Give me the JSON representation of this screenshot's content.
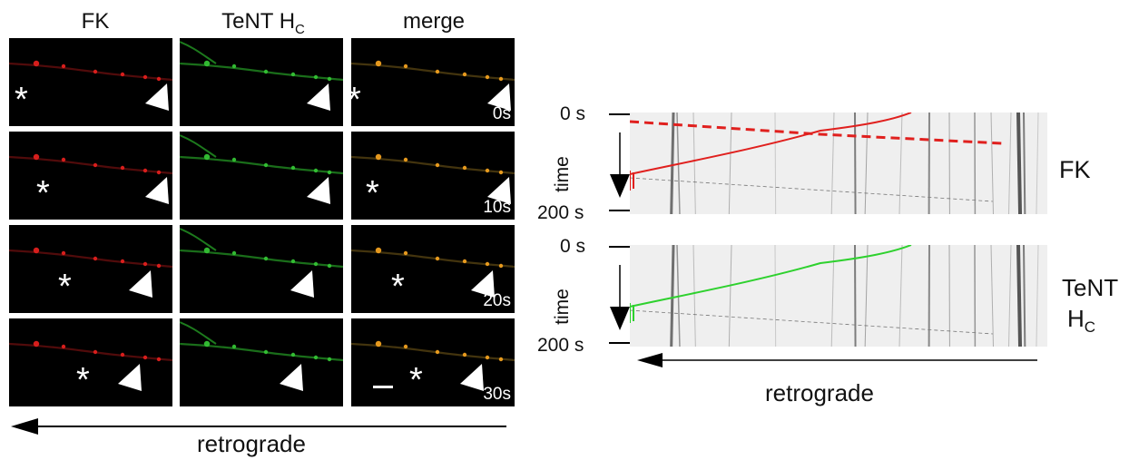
{
  "columns": [
    "FK",
    "TeNT H",
    "merge"
  ],
  "column_sub": "C",
  "timepoints": [
    "0s",
    "10s",
    "20s",
    "30s"
  ],
  "left_arrow_label": "retrograde",
  "kymographs": [
    {
      "label": "FK",
      "label_line2": "",
      "label_sub": "",
      "top_tick": "0 s",
      "bottom_tick": "200 s",
      "axis_label": "time",
      "track_color": "#e0201e"
    },
    {
      "label": "TeNT",
      "label_line2": "H",
      "label_sub": "C",
      "top_tick": "0 s",
      "bottom_tick": "200 s",
      "axis_label": "time",
      "track_color": "#2ed12e"
    }
  ],
  "right_arrow_label": "retrograde",
  "colors": {
    "fk": "#e0201e",
    "tent": "#35c235",
    "merge": "#f0a020",
    "background": "#000000"
  }
}
